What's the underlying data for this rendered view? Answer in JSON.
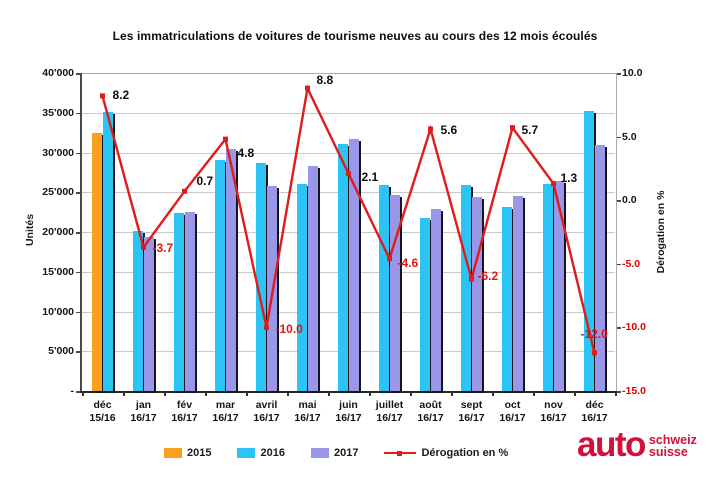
{
  "title": "Les immatriculations de voitures de tourisme neuves au cours des 12 mois écoulés",
  "axis_left": {
    "title": "Unités",
    "ticks": [
      {
        "label": "40'000",
        "value": 40000
      },
      {
        "label": "35'000",
        "value": 35000
      },
      {
        "label": "30'000",
        "value": 30000
      },
      {
        "label": "25'000",
        "value": 25000
      },
      {
        "label": "20'000",
        "value": 20000
      },
      {
        "label": "15'000",
        "value": 15000
      },
      {
        "label": "10'000",
        "value": 10000
      },
      {
        "label": "5'000",
        "value": 5000
      },
      {
        "label": "-",
        "value": 0
      }
    ]
  },
  "axis_right": {
    "title": "Dérogation en %",
    "ticks": [
      {
        "label": "10.0",
        "value": 10
      },
      {
        "label": "5.0",
        "value": 5
      },
      {
        "label": "0.0",
        "value": 0
      },
      {
        "label": "-5.0",
        "value": -5
      },
      {
        "label": "-10.0",
        "value": -10
      },
      {
        "label": "-15.0",
        "value": -15
      }
    ]
  },
  "chart_data": {
    "type": "bar",
    "title": "Les immatriculations de voitures de tourisme neuves au cours des 12 mois écoulés",
    "categories": [
      "déc 15/16",
      "jan 16/17",
      "fév 16/17",
      "mar 16/17",
      "avril 16/17",
      "mai 16/17",
      "juin 16/17",
      "juillet 16/17",
      "août 16/17",
      "sept 16/17",
      "oct 16/17",
      "nov 16/17",
      "déc 16/17"
    ],
    "category_lines": [
      [
        "déc",
        "15/16"
      ],
      [
        "jan",
        "16/17"
      ],
      [
        "fév",
        "16/17"
      ],
      [
        "mar",
        "16/17"
      ],
      [
        "avril",
        "16/17"
      ],
      [
        "mai",
        "16/17"
      ],
      [
        "juin",
        "16/17"
      ],
      [
        "juillet",
        "16/17"
      ],
      [
        "août",
        "16/17"
      ],
      [
        "sept",
        "16/17"
      ],
      [
        "oct",
        "16/17"
      ],
      [
        "nov",
        "16/17"
      ],
      [
        "déc",
        "16/17"
      ]
    ],
    "ylabel_left": "Unités",
    "ylabel_right": "Dérogation en %",
    "ylim_left": [
      0,
      40000
    ],
    "ylim_right": [
      -15,
      10
    ],
    "grid": true,
    "legend_position": "bottom",
    "series": [
      {
        "name": "2015",
        "type": "bar",
        "color": "#F9A11C",
        "values": [
          32500,
          null,
          null,
          null,
          null,
          null,
          null,
          null,
          null,
          null,
          null,
          null,
          null
        ]
      },
      {
        "name": "2016",
        "type": "bar",
        "color": "#2CC4F4",
        "values": [
          35150,
          20100,
          22400,
          29050,
          28650,
          26000,
          31050,
          25850,
          21700,
          25950,
          23200,
          26100,
          35200
        ]
      },
      {
        "name": "2017",
        "type": "bar",
        "color": "#9A96E8",
        "values": [
          null,
          19350,
          22550,
          30450,
          25800,
          28300,
          31700,
          24650,
          22900,
          24350,
          24550,
          26450,
          30950
        ]
      },
      {
        "name": "Dérogation en %",
        "type": "line",
        "axis": "right",
        "color": "#E01B1B",
        "values": [
          8.2,
          -3.7,
          0.7,
          4.8,
          -10.0,
          8.8,
          2.1,
          -4.6,
          5.6,
          -6.2,
          5.7,
          1.3,
          -12.0
        ]
      }
    ]
  },
  "legend": [
    {
      "label": "2015",
      "color": "#F9A11C",
      "type": "swatch"
    },
    {
      "label": "2016",
      "color": "#2CC4F4",
      "type": "swatch"
    },
    {
      "label": "2017",
      "color": "#9A96E8",
      "type": "swatch"
    },
    {
      "label": "Dérogation en %",
      "color": "#E01B1B",
      "type": "line"
    }
  ],
  "colors": {
    "bar_2015": "#F9A11C",
    "bar_2016": "#2CC4F4",
    "bar_2017": "#9A96E8",
    "line": "#E01B1B",
    "negative_label": "#E01414",
    "grid": "#CACACA",
    "logo_red": "#D0113B"
  },
  "logo": {
    "word": "auto",
    "sub1": "schweiz",
    "sub2": "suisse"
  }
}
